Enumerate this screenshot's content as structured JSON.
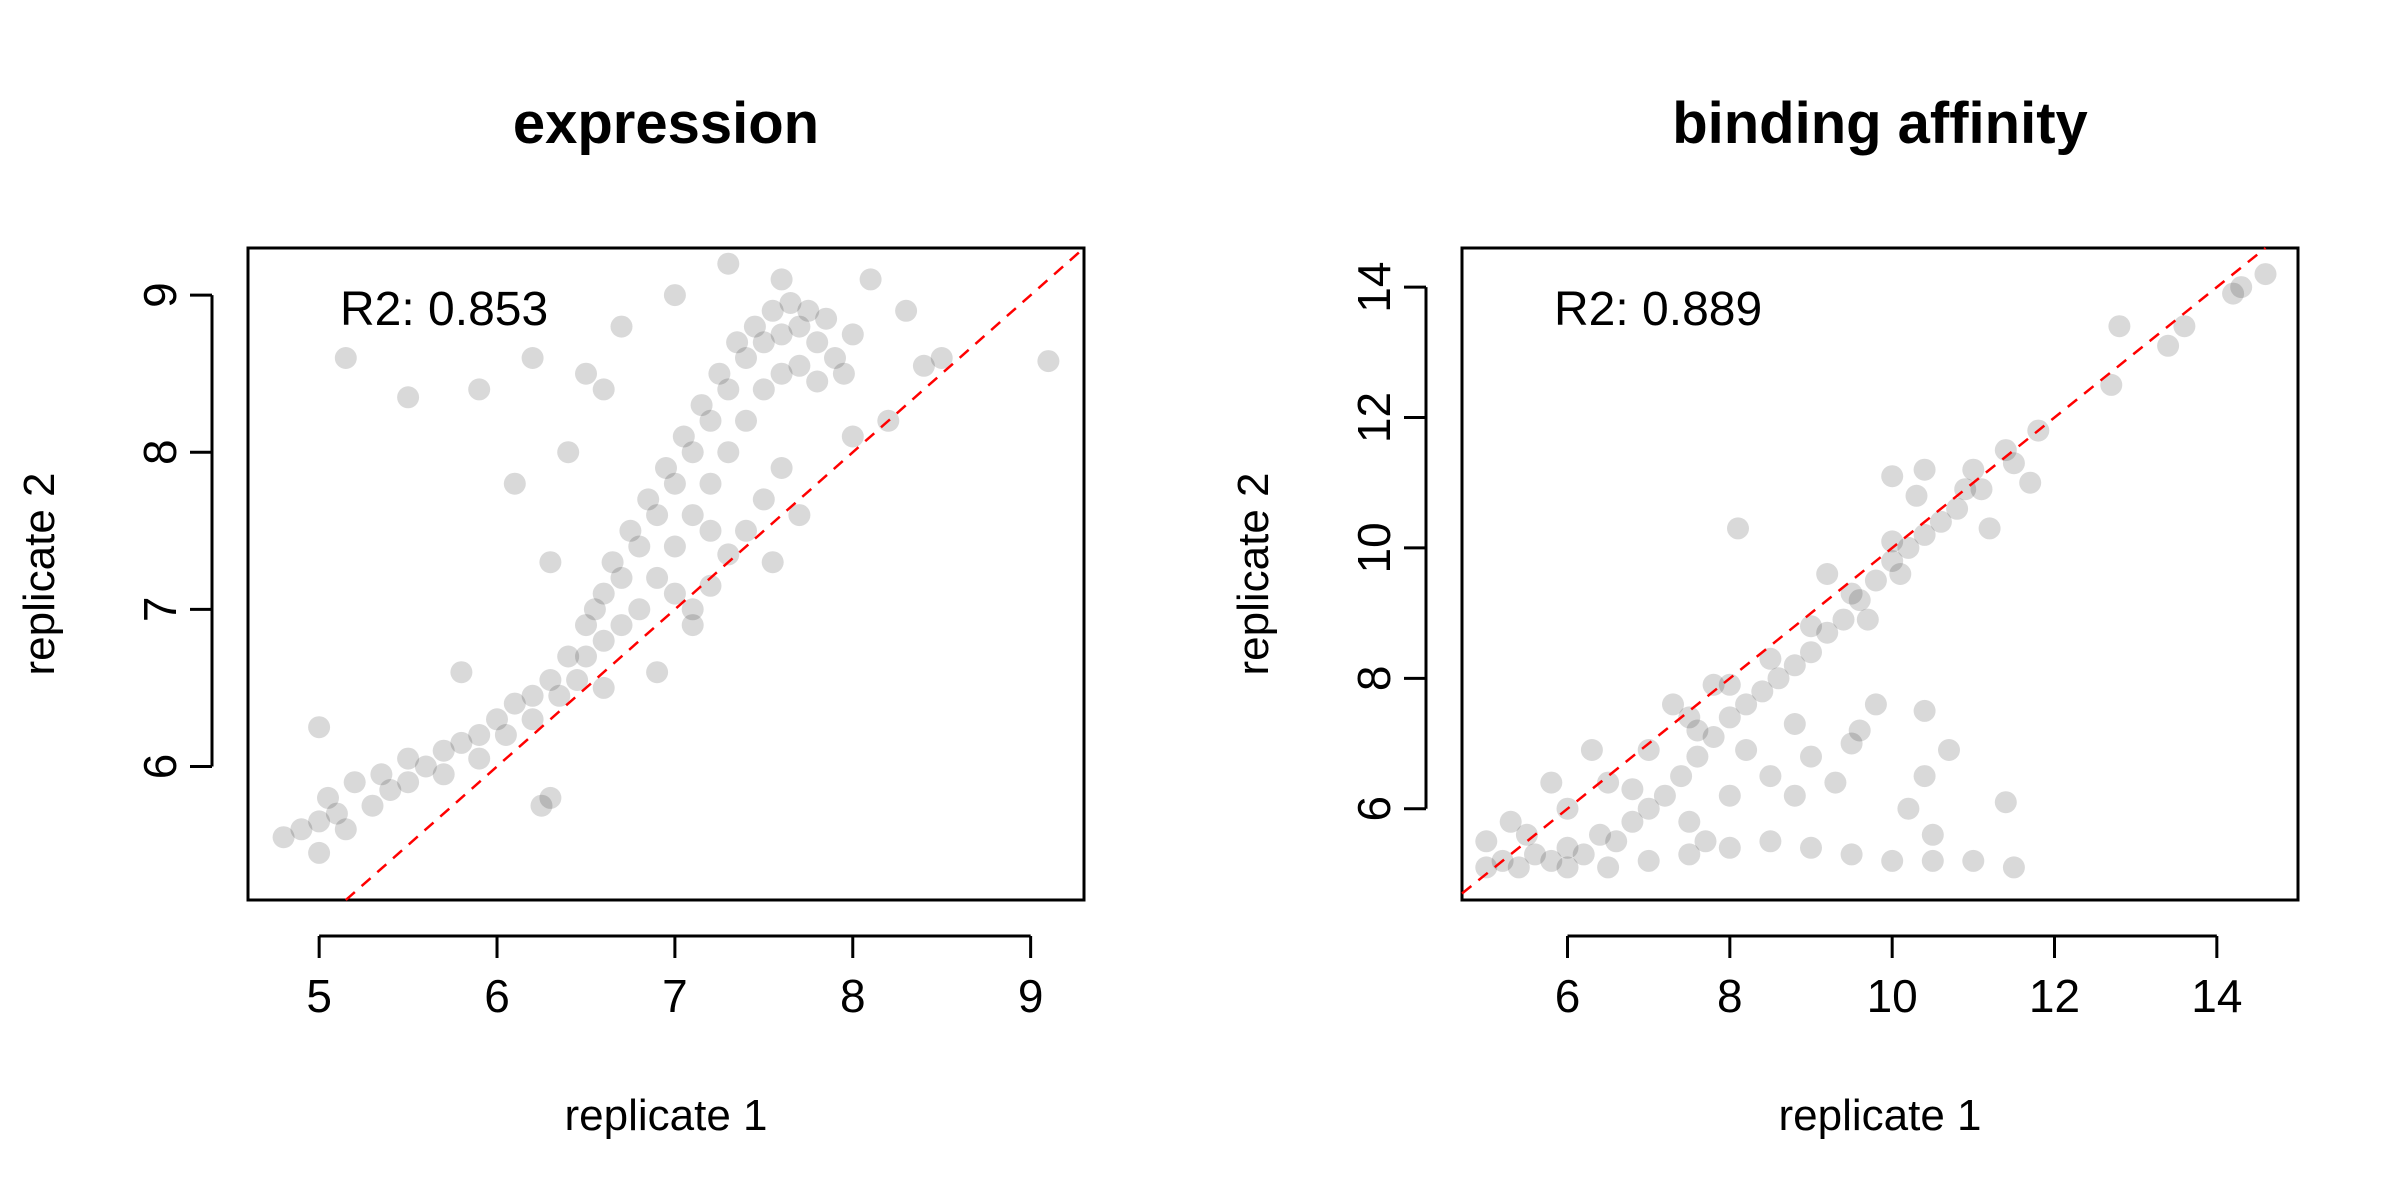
{
  "chart_data": [
    {
      "type": "scatter",
      "title": "expression",
      "xlabel": "replicate 1",
      "ylabel": "replicate 2",
      "xlim": [
        4.6,
        9.3
      ],
      "ylim": [
        5.15,
        9.3
      ],
      "xticks": [
        5,
        6,
        7,
        8,
        9
      ],
      "yticks": [
        6,
        7,
        8,
        9
      ],
      "xtick_labels": [
        "5",
        "6",
        "7",
        "8",
        "9"
      ],
      "ytick_labels": [
        "6",
        "7",
        "8",
        "9"
      ],
      "annotation": "R2: 0.853",
      "reference_line": {
        "style": "dashed",
        "color": "#ff0000",
        "slope": 1,
        "intercept": 0
      },
      "point_color": "#000000",
      "point_alpha": 0.15,
      "grid": false,
      "series": [
        {
          "points": [
            [
              4.8,
              5.55
            ],
            [
              4.9,
              5.6
            ],
            [
              5.0,
              5.65
            ],
            [
              5.05,
              5.8
            ],
            [
              5.0,
              5.45
            ],
            [
              5.1,
              5.7
            ],
            [
              5.2,
              5.9
            ],
            [
              5.15,
              5.6
            ],
            [
              5.3,
              5.75
            ],
            [
              5.35,
              5.95
            ],
            [
              5.4,
              5.85
            ],
            [
              5.5,
              5.9
            ],
            [
              5.5,
              6.05
            ],
            [
              5.6,
              6.0
            ],
            [
              5.7,
              6.1
            ],
            [
              5.7,
              5.95
            ],
            [
              5.8,
              6.15
            ],
            [
              5.9,
              6.2
            ],
            [
              5.9,
              6.05
            ],
            [
              6.0,
              6.3
            ],
            [
              6.05,
              6.2
            ],
            [
              6.1,
              6.4
            ],
            [
              6.2,
              6.45
            ],
            [
              6.2,
              6.3
            ],
            [
              6.3,
              6.55
            ],
            [
              6.35,
              6.45
            ],
            [
              6.4,
              6.7
            ],
            [
              6.45,
              6.55
            ],
            [
              6.5,
              6.9
            ],
            [
              6.5,
              6.7
            ],
            [
              6.55,
              7.0
            ],
            [
              6.6,
              7.1
            ],
            [
              6.6,
              6.8
            ],
            [
              6.65,
              7.3
            ],
            [
              6.7,
              7.2
            ],
            [
              6.7,
              6.9
            ],
            [
              6.75,
              7.5
            ],
            [
              6.8,
              7.4
            ],
            [
              6.8,
              7.0
            ],
            [
              6.85,
              7.7
            ],
            [
              6.9,
              7.6
            ],
            [
              6.9,
              7.2
            ],
            [
              6.95,
              7.9
            ],
            [
              7.0,
              7.8
            ],
            [
              7.0,
              7.4
            ],
            [
              7.0,
              7.1
            ],
            [
              7.05,
              8.1
            ],
            [
              7.1,
              8.0
            ],
            [
              7.1,
              7.6
            ],
            [
              7.15,
              8.3
            ],
            [
              7.2,
              8.2
            ],
            [
              7.2,
              7.8
            ],
            [
              7.25,
              8.5
            ],
            [
              7.3,
              8.4
            ],
            [
              7.3,
              8.0
            ],
            [
              7.35,
              8.7
            ],
            [
              7.4,
              8.6
            ],
            [
              7.4,
              8.2
            ],
            [
              7.45,
              8.8
            ],
            [
              7.5,
              8.7
            ],
            [
              7.5,
              8.4
            ],
            [
              7.55,
              8.9
            ],
            [
              7.6,
              8.75
            ],
            [
              7.6,
              8.5
            ],
            [
              7.65,
              8.95
            ],
            [
              7.7,
              8.8
            ],
            [
              7.7,
              8.55
            ],
            [
              7.75,
              8.9
            ],
            [
              7.8,
              8.7
            ],
            [
              7.8,
              8.45
            ],
            [
              7.85,
              8.85
            ],
            [
              7.9,
              8.6
            ],
            [
              7.95,
              8.5
            ],
            [
              8.0,
              8.75
            ],
            [
              7.4,
              7.5
            ],
            [
              7.3,
              7.35
            ],
            [
              7.2,
              7.15
            ],
            [
              7.1,
              7.0
            ],
            [
              7.5,
              7.7
            ],
            [
              7.6,
              7.9
            ],
            [
              6.3,
              7.3
            ],
            [
              6.1,
              7.8
            ],
            [
              6.4,
              8.0
            ],
            [
              6.6,
              8.4
            ],
            [
              6.2,
              8.6
            ],
            [
              6.5,
              8.5
            ],
            [
              5.9,
              8.4
            ],
            [
              6.7,
              8.8
            ],
            [
              7.0,
              9.0
            ],
            [
              7.3,
              9.2
            ],
            [
              7.6,
              9.1
            ],
            [
              8.1,
              9.1
            ],
            [
              8.3,
              8.9
            ],
            [
              8.4,
              8.55
            ],
            [
              8.2,
              8.2
            ],
            [
              8.0,
              8.1
            ],
            [
              5.15,
              8.6
            ],
            [
              5.5,
              8.35
            ],
            [
              9.1,
              8.58
            ],
            [
              5.8,
              6.6
            ],
            [
              5.0,
              6.25
            ],
            [
              6.3,
              5.8
            ],
            [
              6.6,
              6.5
            ],
            [
              7.2,
              7.5
            ],
            [
              7.55,
              7.3
            ],
            [
              7.7,
              7.6
            ],
            [
              8.5,
              8.6
            ],
            [
              6.9,
              6.6
            ],
            [
              7.1,
              6.9
            ],
            [
              6.25,
              5.75
            ]
          ]
        }
      ]
    },
    {
      "type": "scatter",
      "title": "binding affinity",
      "xlabel": "replicate 1",
      "ylabel": "replicate 2",
      "xlim": [
        4.7,
        15.0
      ],
      "ylim": [
        4.6,
        14.6
      ],
      "xticks": [
        6,
        8,
        10,
        12,
        14
      ],
      "yticks": [
        6,
        8,
        10,
        12,
        14
      ],
      "xtick_labels": [
        "6",
        "8",
        "10",
        "12",
        "14"
      ],
      "ytick_labels": [
        "6",
        "8",
        "10",
        "12",
        "14"
      ],
      "annotation": "R2: 0.889",
      "reference_line": {
        "style": "dashed",
        "color": "#ff0000",
        "slope": 1,
        "intercept": 0
      },
      "point_color": "#000000",
      "point_alpha": 0.15,
      "grid": false,
      "series": [
        {
          "points": [
            [
              5.0,
              5.1
            ],
            [
              5.2,
              5.2
            ],
            [
              5.4,
              5.1
            ],
            [
              5.6,
              5.3
            ],
            [
              5.8,
              5.2
            ],
            [
              6.0,
              5.4
            ],
            [
              6.2,
              5.3
            ],
            [
              6.4,
              5.6
            ],
            [
              6.6,
              5.5
            ],
            [
              6.8,
              5.8
            ],
            [
              7.0,
              6.0
            ],
            [
              7.2,
              6.2
            ],
            [
              7.4,
              6.5
            ],
            [
              7.6,
              6.8
            ],
            [
              7.8,
              7.1
            ],
            [
              8.0,
              7.4
            ],
            [
              8.2,
              7.6
            ],
            [
              8.4,
              7.8
            ],
            [
              8.6,
              8.0
            ],
            [
              8.8,
              8.2
            ],
            [
              9.0,
              8.4
            ],
            [
              9.2,
              8.7
            ],
            [
              9.4,
              8.9
            ],
            [
              9.6,
              9.2
            ],
            [
              9.8,
              9.5
            ],
            [
              10.0,
              9.8
            ],
            [
              10.2,
              10.0
            ],
            [
              10.4,
              10.2
            ],
            [
              10.6,
              10.4
            ],
            [
              10.8,
              10.6
            ],
            [
              5.5,
              5.6
            ],
            [
              6.0,
              6.0
            ],
            [
              6.5,
              6.4
            ],
            [
              7.0,
              6.9
            ],
            [
              7.5,
              7.4
            ],
            [
              8.0,
              7.9
            ],
            [
              8.5,
              8.3
            ],
            [
              9.0,
              8.8
            ],
            [
              9.5,
              9.3
            ],
            [
              10.0,
              10.1
            ],
            [
              6.0,
              5.1
            ],
            [
              6.5,
              5.1
            ],
            [
              7.0,
              5.2
            ],
            [
              7.5,
              5.3
            ],
            [
              8.0,
              5.4
            ],
            [
              8.5,
              5.5
            ],
            [
              9.0,
              5.4
            ],
            [
              9.5,
              5.3
            ],
            [
              10.0,
              5.2
            ],
            [
              10.5,
              5.2
            ],
            [
              7.5,
              5.8
            ],
            [
              8.0,
              6.2
            ],
            [
              8.5,
              6.5
            ],
            [
              9.0,
              6.8
            ],
            [
              9.5,
              7.0
            ],
            [
              8.2,
              6.9
            ],
            [
              8.8,
              7.3
            ],
            [
              9.8,
              7.6
            ],
            [
              10.5,
              5.6
            ],
            [
              11.0,
              5.2
            ],
            [
              11.5,
              5.1
            ],
            [
              11.4,
              6.1
            ],
            [
              10.4,
              6.5
            ],
            [
              10.7,
              6.9
            ],
            [
              10.4,
              7.5
            ],
            [
              9.6,
              7.2
            ],
            [
              8.1,
              10.3
            ],
            [
              10.0,
              11.1
            ],
            [
              10.4,
              11.2
            ],
            [
              11.0,
              11.2
            ],
            [
              11.5,
              11.3
            ],
            [
              11.7,
              11.0
            ],
            [
              11.4,
              11.5
            ],
            [
              11.8,
              11.8
            ],
            [
              12.7,
              12.5
            ],
            [
              12.8,
              13.4
            ],
            [
              13.4,
              13.1
            ],
            [
              13.6,
              13.4
            ],
            [
              14.2,
              13.9
            ],
            [
              14.6,
              14.2
            ],
            [
              14.3,
              14.0
            ],
            [
              5.3,
              5.8
            ],
            [
              5.8,
              6.4
            ],
            [
              6.3,
              6.9
            ],
            [
              7.3,
              7.6
            ],
            [
              7.8,
              7.9
            ],
            [
              9.2,
              9.6
            ],
            [
              10.3,
              10.8
            ],
            [
              7.7,
              5.5
            ],
            [
              8.8,
              6.2
            ],
            [
              9.3,
              6.4
            ],
            [
              10.2,
              6.0
            ],
            [
              10.9,
              10.9
            ],
            [
              11.2,
              10.3
            ],
            [
              11.1,
              10.9
            ],
            [
              6.8,
              6.3
            ],
            [
              7.6,
              7.2
            ],
            [
              9.7,
              8.9
            ],
            [
              10.1,
              9.6
            ],
            [
              5.0,
              5.5
            ]
          ]
        }
      ]
    }
  ]
}
